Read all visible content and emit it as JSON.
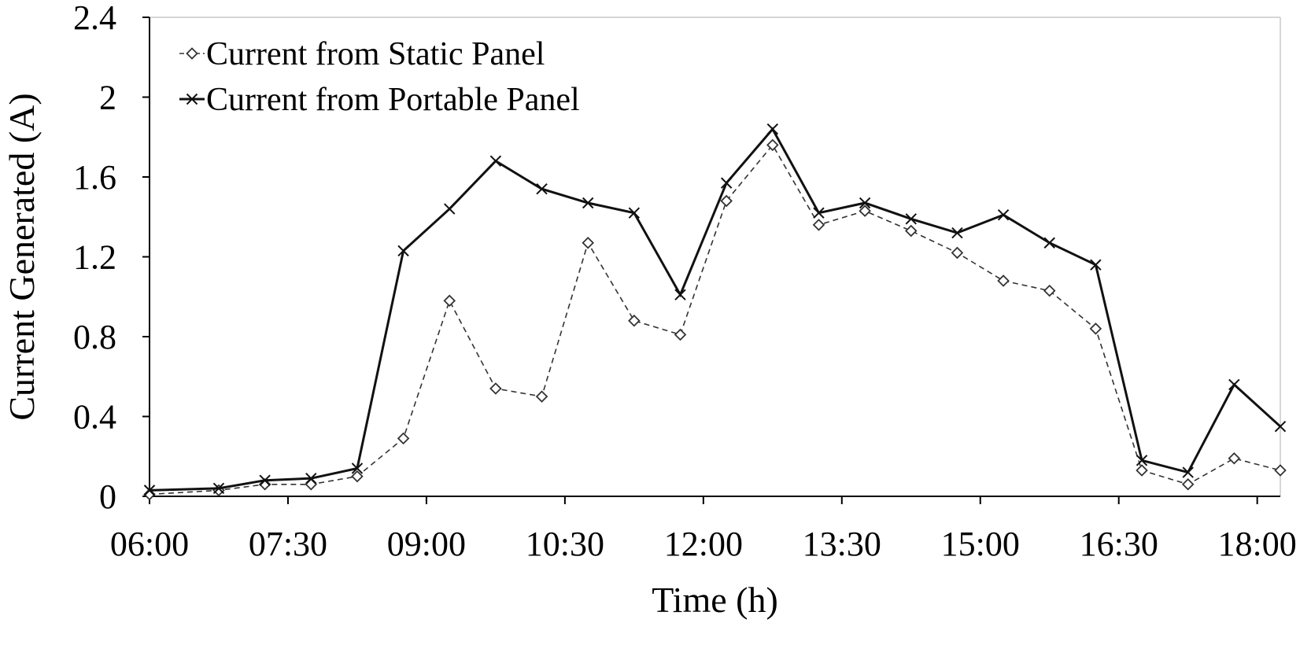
{
  "chart_data": {
    "type": "line",
    "xlabel": "Time (h)",
    "ylabel": "Current Generated (A)",
    "ylim": [
      0,
      2.4
    ],
    "yticks": [
      "0",
      "0.4",
      "0.8",
      "1.2",
      "1.6",
      "2",
      "2.4"
    ],
    "yticks_values": [
      0,
      0.4,
      0.8,
      1.2,
      1.6,
      2.0,
      2.4
    ],
    "xlim": [
      6.0,
      18.25
    ],
    "xticks": [
      "06:00",
      "07:30",
      "09:00",
      "10:30",
      "12:00",
      "13:30",
      "15:00",
      "16:30",
      "18:00"
    ],
    "xticks_values": [
      6.0,
      7.5,
      9.0,
      10.5,
      12.0,
      13.5,
      15.0,
      16.5,
      18.0
    ],
    "x": [
      6.0,
      6.75,
      7.25,
      7.75,
      8.25,
      8.75,
      9.25,
      9.75,
      10.25,
      10.75,
      11.25,
      11.75,
      12.25,
      12.75,
      13.25,
      13.75,
      14.25,
      14.75,
      15.25,
      15.75,
      16.25,
      16.75,
      17.25,
      17.75,
      18.25
    ],
    "legend_position": "top-left",
    "grid": false,
    "series": [
      {
        "name": "Current from Static Panel",
        "marker": "diamond",
        "line_style": "dashed",
        "color": "#333333",
        "values": [
          0.01,
          0.03,
          0.06,
          0.06,
          0.1,
          0.29,
          0.98,
          0.54,
          0.5,
          1.27,
          0.88,
          0.81,
          1.48,
          1.76,
          1.36,
          1.43,
          1.33,
          1.22,
          1.08,
          1.03,
          0.84,
          0.13,
          0.06,
          0.19,
          0.13
        ]
      },
      {
        "name": "Current from Portable Panel",
        "marker": "x",
        "line_style": "solid",
        "color": "#111111",
        "values": [
          0.03,
          0.04,
          0.08,
          0.09,
          0.14,
          1.23,
          1.44,
          1.68,
          1.54,
          1.47,
          1.42,
          1.01,
          1.57,
          1.84,
          1.42,
          1.47,
          1.39,
          1.32,
          1.41,
          1.27,
          1.16,
          0.18,
          0.12,
          0.56,
          0.35
        ]
      }
    ]
  }
}
